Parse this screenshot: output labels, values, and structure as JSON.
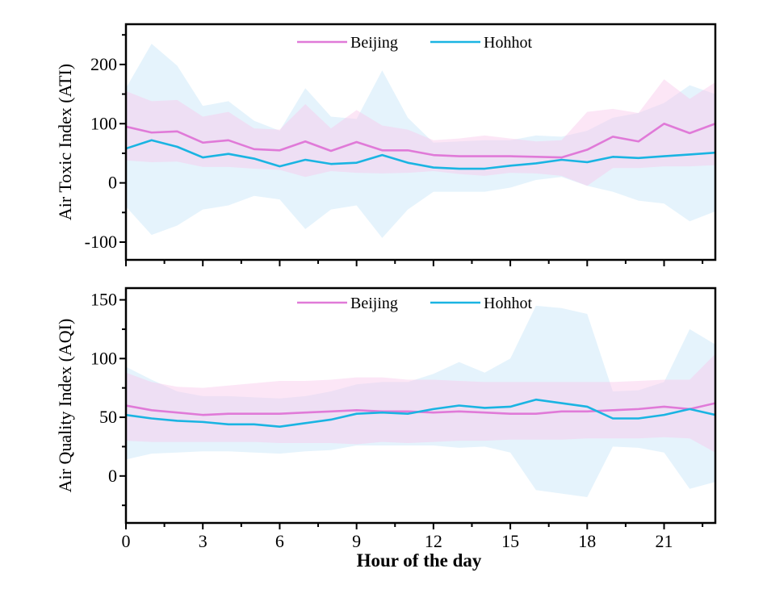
{
  "colors": {
    "beijing_line": "#e07ad8",
    "beijing_band": "#f9c8ea",
    "hohhot_line": "#1ab4e2",
    "hohhot_band": "#cfeaf9"
  },
  "chart_data": [
    {
      "type": "line",
      "panel": "top",
      "title": "",
      "xlabel": "",
      "ylabel": "Air Toxic Index (ATI)",
      "x": [
        0,
        1,
        2,
        3,
        4,
        5,
        6,
        7,
        8,
        9,
        10,
        11,
        12,
        13,
        14,
        15,
        16,
        17,
        18,
        19,
        20,
        21,
        22,
        23
      ],
      "xlim": [
        0,
        23
      ],
      "ylim": [
        -130,
        268
      ],
      "yticks": [
        -100,
        0,
        100,
        200
      ],
      "ytick_labels": [
        "-100",
        "0",
        "100",
        "200"
      ],
      "yminor_step": 50,
      "xticks": [
        0,
        3,
        6,
        9,
        12,
        15,
        18,
        21
      ],
      "xminor_step": 1.5,
      "show_xtick_labels": false,
      "grid": false,
      "legend": {
        "placement": "top-center",
        "entries": [
          "Beijing",
          "Hohhot"
        ]
      },
      "series": [
        {
          "name": "Beijing",
          "values": [
            95,
            85,
            87,
            68,
            72,
            57,
            55,
            70,
            54,
            69,
            55,
            55,
            47,
            45,
            45,
            45,
            44,
            43,
            56,
            78,
            70,
            100,
            84,
            100
          ],
          "upper": [
            155,
            138,
            140,
            112,
            120,
            92,
            90,
            133,
            92,
            123,
            97,
            90,
            72,
            75,
            80,
            75,
            70,
            72,
            120,
            125,
            118,
            175,
            142,
            170
          ],
          "lower": [
            38,
            35,
            36,
            27,
            27,
            24,
            22,
            10,
            20,
            17,
            16,
            17,
            20,
            15,
            12,
            17,
            16,
            12,
            -5,
            25,
            25,
            28,
            28,
            30
          ]
        },
        {
          "name": "Hohhot",
          "values": [
            58,
            72,
            61,
            43,
            49,
            41,
            28,
            39,
            32,
            34,
            47,
            34,
            26,
            24,
            24,
            29,
            33,
            39,
            35,
            44,
            42,
            45,
            48,
            51
          ],
          "upper": [
            160,
            235,
            198,
            130,
            138,
            105,
            88,
            160,
            112,
            108,
            190,
            110,
            68,
            70,
            72,
            72,
            80,
            78,
            88,
            110,
            118,
            135,
            165,
            150
          ],
          "lower": [
            -40,
            -88,
            -72,
            -45,
            -38,
            -22,
            -28,
            -78,
            -45,
            -38,
            -93,
            -45,
            -15,
            -15,
            -15,
            -8,
            5,
            10,
            -5,
            -15,
            -30,
            -35,
            -65,
            -48
          ]
        }
      ]
    },
    {
      "type": "line",
      "panel": "bottom",
      "title": "",
      "xlabel": "Hour of the day",
      "ylabel": "Air Quality Index (AQI)",
      "x": [
        0,
        1,
        2,
        3,
        4,
        5,
        6,
        7,
        8,
        9,
        10,
        11,
        12,
        13,
        14,
        15,
        16,
        17,
        18,
        19,
        20,
        21,
        22,
        23
      ],
      "xlim": [
        0,
        23
      ],
      "ylim": [
        -40,
        160
      ],
      "yticks": [
        0,
        50,
        100,
        150
      ],
      "ytick_labels": [
        "0",
        "50",
        "100",
        "150"
      ],
      "yminor_step": 25,
      "xticks": [
        0,
        3,
        6,
        9,
        12,
        15,
        18,
        21
      ],
      "xtick_labels": [
        "0",
        "3",
        "6",
        "9",
        "12",
        "15",
        "18",
        "21"
      ],
      "xminor_step": 1.5,
      "show_xtick_labels": true,
      "grid": false,
      "legend": {
        "placement": "top-center",
        "entries": [
          "Beijing",
          "Hohhot"
        ]
      },
      "series": [
        {
          "name": "Beijing",
          "values": [
            60,
            56,
            54,
            52,
            53,
            53,
            53,
            54,
            55,
            56,
            55,
            55,
            54,
            55,
            54,
            53,
            53,
            55,
            55,
            56,
            57,
            59,
            57,
            62
          ],
          "upper": [
            88,
            80,
            76,
            75,
            77,
            79,
            81,
            81,
            82,
            84,
            84,
            82,
            82,
            81,
            80,
            80,
            80,
            80,
            80,
            80,
            81,
            82,
            82,
            104
          ],
          "lower": [
            30,
            29,
            29,
            29,
            29,
            29,
            28,
            28,
            28,
            27,
            29,
            28,
            29,
            30,
            30,
            31,
            31,
            31,
            32,
            32,
            32,
            33,
            32,
            20
          ]
        },
        {
          "name": "Hohhot",
          "values": [
            52,
            49,
            47,
            46,
            44,
            44,
            42,
            45,
            48,
            53,
            54,
            53,
            57,
            60,
            58,
            59,
            65,
            62,
            59,
            49,
            49,
            52,
            57,
            52
          ],
          "upper": [
            93,
            82,
            72,
            68,
            68,
            67,
            66,
            68,
            72,
            78,
            80,
            80,
            87,
            97,
            88,
            100,
            145,
            143,
            138,
            72,
            73,
            80,
            125,
            112
          ],
          "lower": [
            14,
            19,
            20,
            21,
            21,
            20,
            19,
            21,
            22,
            26,
            26,
            26,
            26,
            24,
            25,
            20,
            -12,
            -15,
            -18,
            25,
            24,
            20,
            -11,
            -5
          ]
        }
      ]
    }
  ]
}
